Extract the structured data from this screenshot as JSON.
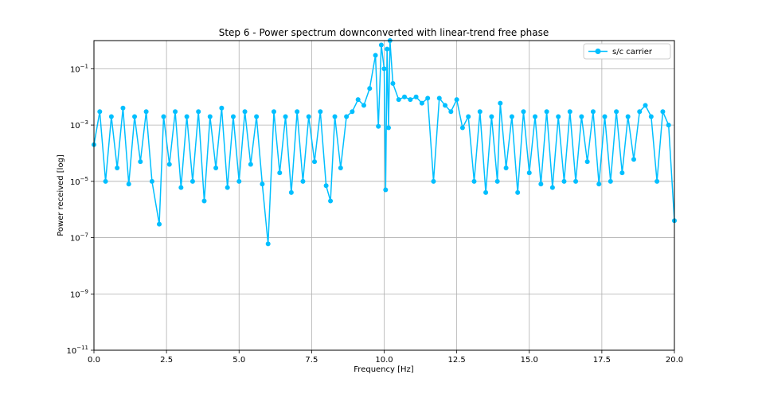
{
  "chart_data": {
    "type": "line",
    "title": "Step 6 - Power spectrum downconverted with linear-trend free phase",
    "xlabel": "Frequency [Hz]",
    "ylabel": "Power received [log]",
    "xlim": [
      0,
      20
    ],
    "ylim": [
      1e-11,
      1
    ],
    "yscale": "log",
    "grid": true,
    "legend_position": "top-right",
    "xticks": [
      {
        "value": 0.0,
        "label": "0.0"
      },
      {
        "value": 2.5,
        "label": "2.5"
      },
      {
        "value": 5.0,
        "label": "5.0"
      },
      {
        "value": 7.5,
        "label": "7.5"
      },
      {
        "value": 10.0,
        "label": "10.0"
      },
      {
        "value": 12.5,
        "label": "12.5"
      },
      {
        "value": 15.0,
        "label": "15.0"
      },
      {
        "value": 17.5,
        "label": "17.5"
      },
      {
        "value": 20.0,
        "label": "20.0"
      }
    ],
    "yticks": [
      {
        "value": 0.1,
        "base": "10",
        "exp": "−1"
      },
      {
        "value": 0.001,
        "base": "10",
        "exp": "−3"
      },
      {
        "value": 1e-05,
        "base": "10",
        "exp": "−5"
      },
      {
        "value": 1e-07,
        "base": "10",
        "exp": "−7"
      },
      {
        "value": 1e-09,
        "base": "10",
        "exp": "−9"
      },
      {
        "value": 1e-11,
        "base": "10",
        "exp": "−11"
      }
    ],
    "series": [
      {
        "name": "s/c carrier",
        "color": "#00bfff",
        "marker": "circle",
        "x": [
          0.0,
          0.2,
          0.4,
          0.6,
          0.8,
          1.0,
          1.2,
          1.4,
          1.6,
          1.8,
          2.0,
          2.25,
          2.4,
          2.6,
          2.8,
          3.0,
          3.2,
          3.4,
          3.6,
          3.8,
          4.0,
          4.2,
          4.4,
          4.6,
          4.8,
          5.0,
          5.2,
          5.4,
          5.6,
          5.8,
          6.0,
          6.2,
          6.4,
          6.6,
          6.8,
          7.0,
          7.2,
          7.4,
          7.6,
          7.8,
          8.0,
          8.15,
          8.3,
          8.5,
          8.7,
          8.9,
          9.1,
          9.3,
          9.5,
          9.7,
          9.8,
          9.9,
          10.0,
          10.05,
          10.1,
          10.15,
          10.2,
          10.3,
          10.5,
          10.7,
          10.9,
          11.1,
          11.3,
          11.5,
          11.7,
          11.9,
          12.1,
          12.3,
          12.5,
          12.7,
          12.9,
          13.1,
          13.3,
          13.5,
          13.7,
          13.9,
          14.0,
          14.2,
          14.4,
          14.6,
          14.8,
          15.0,
          15.2,
          15.4,
          15.6,
          15.8,
          16.0,
          16.2,
          16.4,
          16.6,
          16.8,
          17.0,
          17.2,
          17.4,
          17.6,
          17.8,
          18.0,
          18.2,
          18.4,
          18.6,
          18.8,
          19.0,
          19.2,
          19.4,
          19.6,
          19.8,
          20.0
        ],
        "y": [
          0.0002,
          0.003,
          1e-05,
          0.002,
          3e-05,
          0.004,
          8e-06,
          0.002,
          5e-05,
          0.003,
          1e-05,
          3e-07,
          0.002,
          4e-05,
          0.003,
          6e-06,
          0.002,
          1e-05,
          0.003,
          2e-06,
          0.002,
          3e-05,
          0.004,
          6e-06,
          0.002,
          1e-05,
          0.003,
          4e-05,
          0.002,
          8e-06,
          6e-08,
          0.003,
          2e-05,
          0.002,
          4e-06,
          0.003,
          1e-05,
          0.002,
          5e-05,
          0.003,
          7e-06,
          2e-06,
          0.002,
          3e-05,
          0.002,
          0.003,
          0.008,
          0.005,
          0.02,
          0.3,
          0.0009,
          0.7,
          0.1,
          5e-06,
          0.5,
          0.0008,
          1.0,
          0.03,
          0.008,
          0.01,
          0.008,
          0.01,
          0.006,
          0.009,
          1e-05,
          0.009,
          0.005,
          0.003,
          0.008,
          0.0008,
          0.002,
          1e-05,
          0.003,
          4e-06,
          0.002,
          1e-05,
          0.006,
          3e-05,
          0.002,
          4e-06,
          0.003,
          2e-05,
          0.002,
          8e-06,
          0.003,
          6e-06,
          0.002,
          1e-05,
          0.003,
          1e-05,
          0.002,
          5e-05,
          0.003,
          8e-06,
          0.002,
          1e-05,
          0.003,
          2e-05,
          0.002,
          6e-05,
          0.003,
          0.005,
          0.002,
          1e-05,
          0.003,
          0.001,
          4e-07
        ]
      }
    ]
  }
}
